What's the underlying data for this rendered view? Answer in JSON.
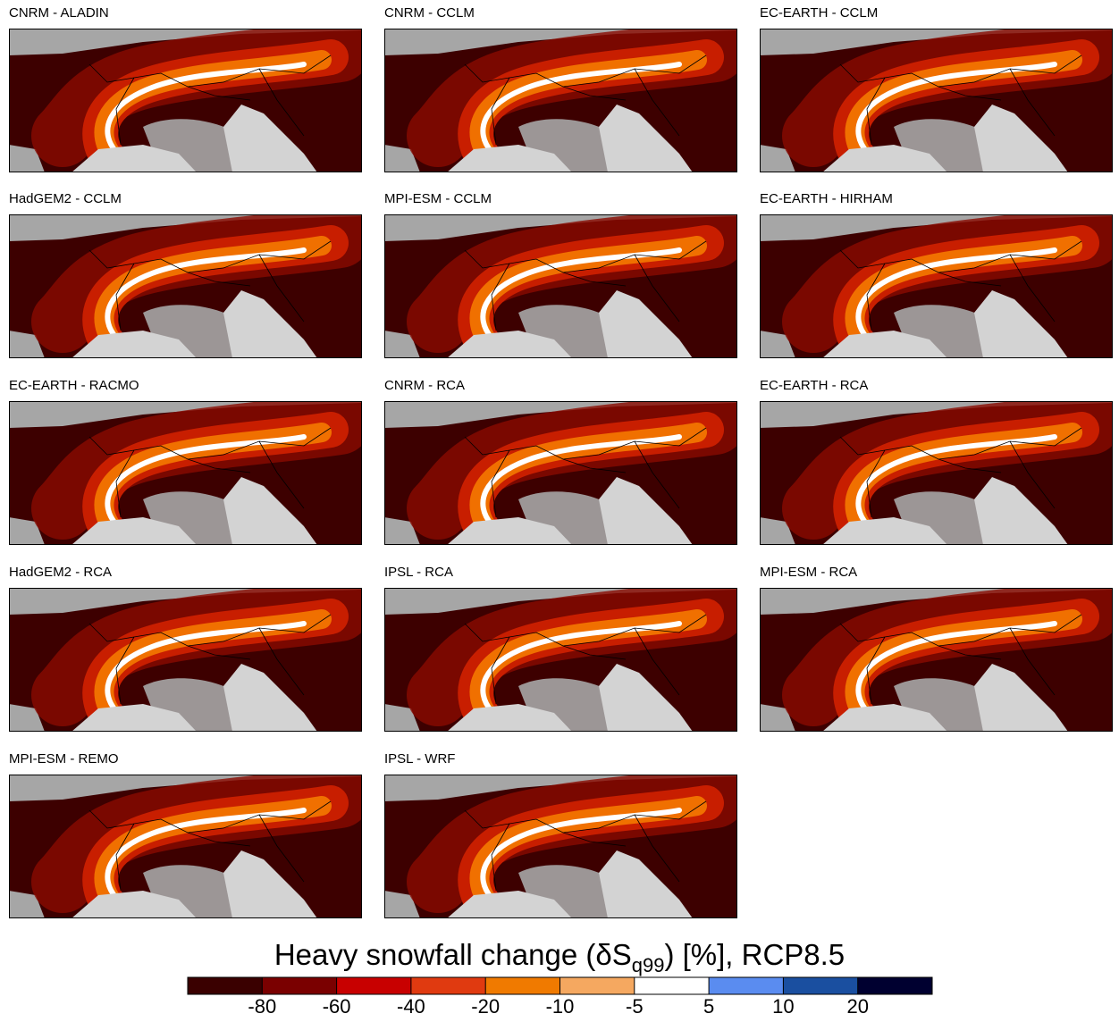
{
  "panels": [
    {
      "title": "CNRM - ALADIN"
    },
    {
      "title": "CNRM - CCLM"
    },
    {
      "title": "EC-EARTH - CCLM"
    },
    {
      "title": "HadGEM2 - CCLM"
    },
    {
      "title": "MPI-ESM - CCLM"
    },
    {
      "title": "EC-EARTH - HIRHAM"
    },
    {
      "title": "EC-EARTH - RACMO"
    },
    {
      "title": "CNRM - RCA"
    },
    {
      "title": "EC-EARTH - RCA"
    },
    {
      "title": "HadGEM2 - RCA"
    },
    {
      "title": "IPSL - RCA"
    },
    {
      "title": "MPI-ESM - RCA"
    },
    {
      "title": "MPI-ESM - REMO"
    },
    {
      "title": "IPSL - WRF"
    }
  ],
  "colorbar": {
    "title": {
      "main": "Heavy snowfall change (δS",
      "sub": "q99",
      "rest": ") [%], RCP8.5"
    },
    "colors": [
      "#3a0000",
      "#7a0000",
      "#c80000",
      "#e03a10",
      "#f07a00",
      "#f5a860",
      "#ffffff",
      "#5a8cf0",
      "#1a4fa0",
      "#000030"
    ],
    "ticks": [
      -80,
      -60,
      -40,
      -20,
      -10,
      -5,
      5,
      10,
      20
    ]
  }
}
